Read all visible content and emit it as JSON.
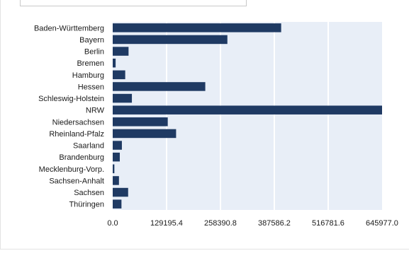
{
  "chart_data": {
    "type": "bar",
    "orientation": "horizontal",
    "categories": [
      "Baden-Württemberg",
      "Bayern",
      "Berlin",
      "Bremen",
      "Hamburg",
      "Hessen",
      "Schleswig-Holstein",
      "NRW",
      "Niedersachsen",
      "Rheinland-Pfalz",
      "Saarland",
      "Brandenburg",
      "Mecklenburg-Vorp.",
      "Sachsen-Anhalt",
      "Sachsen",
      "Thüringen"
    ],
    "values": [
      404000,
      275000,
      38000,
      7000,
      30000,
      222000,
      46000,
      645977,
      132000,
      152000,
      22000,
      17000,
      4000,
      15000,
      37000,
      21000
    ],
    "x_ticks": [
      "0.0",
      "129195.4",
      "258390.8",
      "387586.2",
      "516781.6",
      "645977.0"
    ],
    "xlim": [
      0,
      645977.0
    ],
    "title": "",
    "xlabel": "",
    "ylabel": "",
    "grid": "vertical",
    "colors": {
      "bar": "#1f3a63",
      "plot_background": "#e8eef7",
      "grid": "#ffffff"
    }
  }
}
